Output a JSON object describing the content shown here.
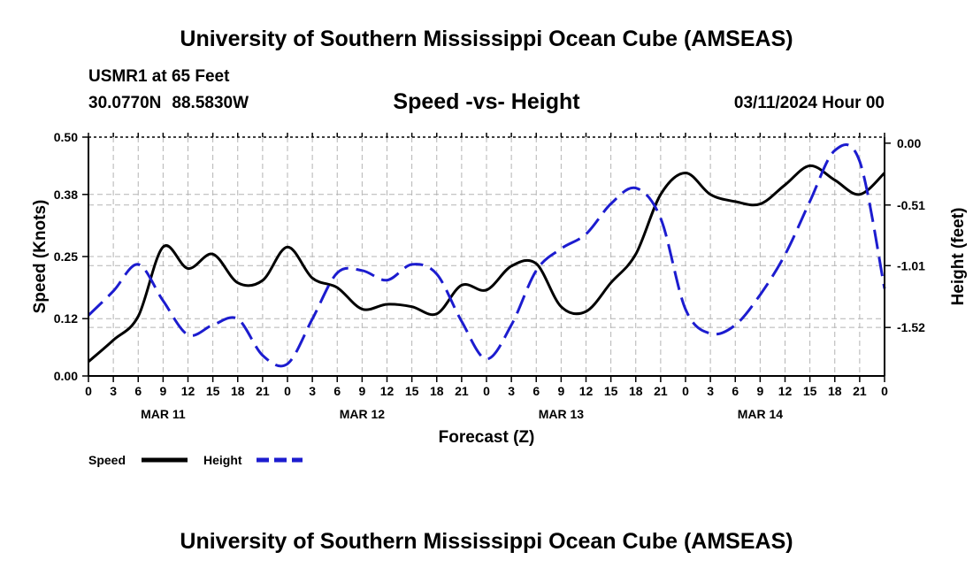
{
  "header": {
    "title": "University of Southern Mississippi Ocean Cube (AMSEAS)",
    "station": "USMR1 at 65 Feet",
    "lat": "30.0770N",
    "lon": "88.5830W",
    "subtitle": "Speed -vs- Height",
    "datetime": "03/11/2024 Hour 00"
  },
  "footer": {
    "title": "University of Southern Mississippi Ocean Cube (AMSEAS)"
  },
  "chart_data": {
    "type": "line",
    "title": "Speed -vs- Height",
    "xlabel": "Forecast (Z)",
    "ylabel": "Speed (Knots)",
    "y2label": "Height (feet)",
    "xlim": [
      0,
      96
    ],
    "ylim": [
      0,
      0.5
    ],
    "y2lim": [
      -1.92,
      0.05
    ],
    "grid": true,
    "legend_position": "bottom-left",
    "x_tick_labels": [
      "0",
      "3",
      "6",
      "9",
      "12",
      "15",
      "18",
      "21",
      "0",
      "3",
      "6",
      "9",
      "12",
      "15",
      "18",
      "21",
      "0",
      "3",
      "6",
      "9",
      "12",
      "15",
      "18",
      "21",
      "0",
      "3",
      "6",
      "9",
      "12",
      "15",
      "18",
      "21",
      "0"
    ],
    "day_labels": [
      {
        "label": "MAR 11",
        "hour": 9
      },
      {
        "label": "MAR 12",
        "hour": 33
      },
      {
        "label": "MAR 13",
        "hour": 57
      },
      {
        "label": "MAR 14",
        "hour": 81
      }
    ],
    "y_ticks": [
      0.0,
      0.12,
      0.25,
      0.38,
      0.5
    ],
    "y_tick_labels": [
      "0.00",
      "0.12",
      "0.25",
      "0.38",
      "0.50"
    ],
    "y2_ticks": [
      0.0,
      -0.51,
      -1.01,
      -1.52
    ],
    "y2_tick_labels": [
      "0.00",
      "-0.51",
      "-1.01",
      "-1.52"
    ],
    "series": [
      {
        "name": "Speed",
        "axis": "left",
        "color": "#000000",
        "dash": "solid",
        "points": [
          [
            0,
            0.03
          ],
          [
            3,
            0.075
          ],
          [
            6,
            0.125
          ],
          [
            9,
            0.27
          ],
          [
            12,
            0.225
          ],
          [
            15,
            0.255
          ],
          [
            18,
            0.195
          ],
          [
            21,
            0.2
          ],
          [
            24,
            0.27
          ],
          [
            27,
            0.205
          ],
          [
            30,
            0.185
          ],
          [
            33,
            0.14
          ],
          [
            36,
            0.15
          ],
          [
            39,
            0.145
          ],
          [
            42,
            0.13
          ],
          [
            45,
            0.19
          ],
          [
            48,
            0.18
          ],
          [
            51,
            0.23
          ],
          [
            54,
            0.235
          ],
          [
            57,
            0.145
          ],
          [
            60,
            0.135
          ],
          [
            63,
            0.195
          ],
          [
            66,
            0.255
          ],
          [
            69,
            0.38
          ],
          [
            72,
            0.425
          ],
          [
            75,
            0.38
          ],
          [
            78,
            0.365
          ],
          [
            81,
            0.36
          ],
          [
            84,
            0.4
          ],
          [
            87,
            0.44
          ],
          [
            90,
            0.41
          ],
          [
            93,
            0.38
          ],
          [
            96,
            0.425
          ]
        ]
      },
      {
        "name": "Height",
        "axis": "right",
        "color": "#1c1ccf",
        "dash": "dashed",
        "points": [
          [
            0,
            -1.42
          ],
          [
            3,
            -1.22
          ],
          [
            6,
            -1.0
          ],
          [
            9,
            -1.3
          ],
          [
            12,
            -1.58
          ],
          [
            15,
            -1.5
          ],
          [
            18,
            -1.45
          ],
          [
            21,
            -1.75
          ],
          [
            24,
            -1.82
          ],
          [
            27,
            -1.45
          ],
          [
            30,
            -1.07
          ],
          [
            33,
            -1.05
          ],
          [
            36,
            -1.13
          ],
          [
            39,
            -1.0
          ],
          [
            42,
            -1.08
          ],
          [
            45,
            -1.47
          ],
          [
            48,
            -1.78
          ],
          [
            51,
            -1.5
          ],
          [
            54,
            -1.05
          ],
          [
            57,
            -0.87
          ],
          [
            60,
            -0.75
          ],
          [
            63,
            -0.5
          ],
          [
            66,
            -0.37
          ],
          [
            69,
            -0.62
          ],
          [
            72,
            -1.37
          ],
          [
            75,
            -1.57
          ],
          [
            78,
            -1.5
          ],
          [
            81,
            -1.25
          ],
          [
            84,
            -0.92
          ],
          [
            87,
            -0.48
          ],
          [
            90,
            -0.06
          ],
          [
            93,
            -0.15
          ],
          [
            96,
            -1.2
          ]
        ]
      }
    ]
  }
}
